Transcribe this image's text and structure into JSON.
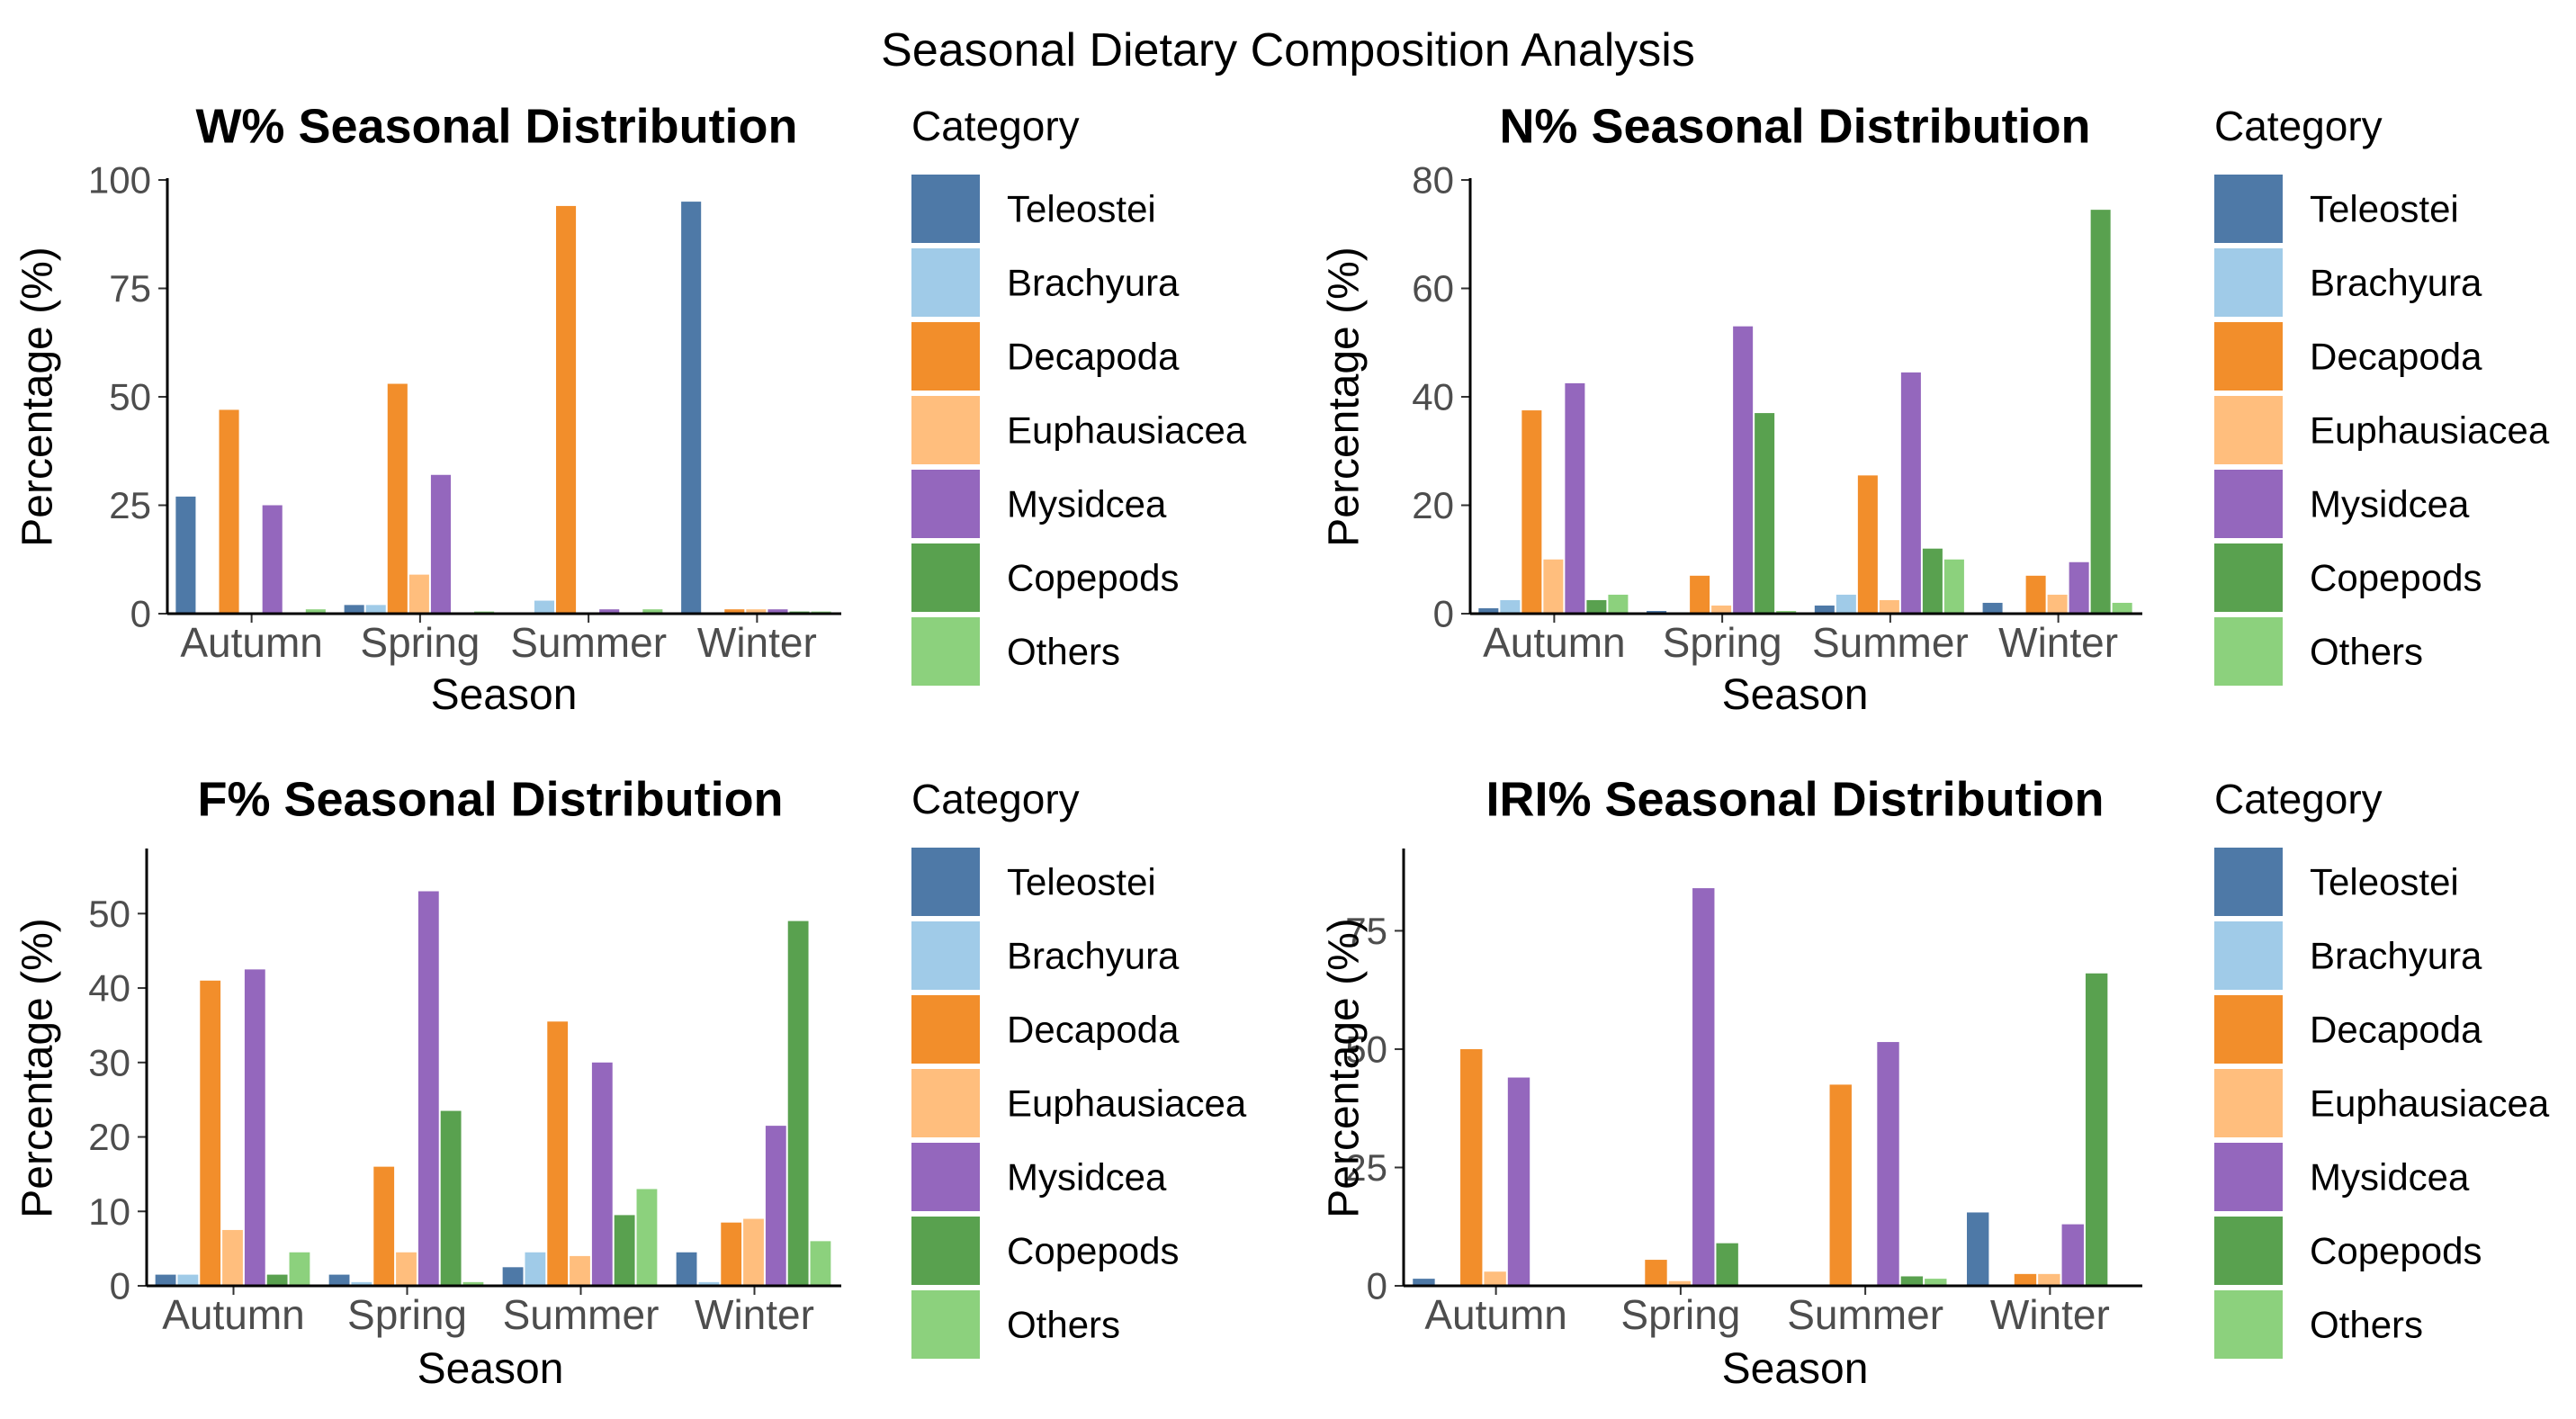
{
  "figure_title": "Seasonal Dietary Composition Analysis",
  "colors": {
    "Teleostei": "#4E79A7",
    "Brachyura": "#A0CBE8",
    "Decapoda": "#F28E2B",
    "Euphausiacea": "#FFBE7D",
    "Mysidcea": "#9467BD",
    "Copepods": "#59A14F",
    "Others": "#8CD17D"
  },
  "chart_data": [
    {
      "type": "bar",
      "title": "W% Seasonal Distribution",
      "xlabel": "Season",
      "ylabel": "Percentage (%)",
      "ylim": [
        0,
        100
      ],
      "yticks": [
        0,
        25,
        50,
        75,
        100
      ],
      "categories": [
        "Autumn",
        "Spring",
        "Summer",
        "Winter"
      ],
      "legend_title": "Category",
      "series": [
        {
          "name": "Teleostei",
          "values": [
            27,
            2,
            0,
            95
          ]
        },
        {
          "name": "Brachyura",
          "values": [
            0,
            2,
            3,
            0
          ]
        },
        {
          "name": "Decapoda",
          "values": [
            47,
            53,
            94,
            1
          ]
        },
        {
          "name": "Euphausiacea",
          "values": [
            0,
            9,
            0,
            1
          ]
        },
        {
          "name": "Mysidcea",
          "values": [
            25,
            32,
            1,
            1
          ]
        },
        {
          "name": "Copepods",
          "values": [
            0,
            0,
            0,
            0.5
          ]
        },
        {
          "name": "Others",
          "values": [
            1,
            0.5,
            1,
            0.5
          ]
        }
      ]
    },
    {
      "type": "bar",
      "title": "N% Seasonal Distribution",
      "xlabel": "Season",
      "ylabel": "Percentage (%)",
      "ylim": [
        0,
        80
      ],
      "yticks": [
        0,
        20,
        40,
        60,
        80
      ],
      "categories": [
        "Autumn",
        "Spring",
        "Summer",
        "Winter"
      ],
      "legend_title": "Category",
      "series": [
        {
          "name": "Teleostei",
          "values": [
            1,
            0.5,
            1.5,
            2
          ]
        },
        {
          "name": "Brachyura",
          "values": [
            2.5,
            0,
            3.5,
            0
          ]
        },
        {
          "name": "Decapoda",
          "values": [
            37.5,
            7,
            25.5,
            7
          ]
        },
        {
          "name": "Euphausiacea",
          "values": [
            10,
            1.5,
            2.5,
            3.5
          ]
        },
        {
          "name": "Mysidcea",
          "values": [
            42.5,
            53,
            44.5,
            9.5
          ]
        },
        {
          "name": "Copepods",
          "values": [
            2.5,
            37,
            12,
            74.5
          ]
        },
        {
          "name": "Others",
          "values": [
            3.5,
            0.5,
            10,
            2
          ]
        }
      ]
    },
    {
      "type": "bar",
      "title": "F% Seasonal Distribution",
      "xlabel": "Season",
      "ylabel": "Percentage (%)",
      "ylim": [
        0,
        58.5
      ],
      "yticks": [
        0,
        10,
        20,
        30,
        40,
        50
      ],
      "categories": [
        "Autumn",
        "Spring",
        "Summer",
        "Winter"
      ],
      "legend_title": "Category",
      "series": [
        {
          "name": "Teleostei",
          "values": [
            1.5,
            1.5,
            2.5,
            4.5
          ]
        },
        {
          "name": "Brachyura",
          "values": [
            1.5,
            0.5,
            4.5,
            0.5
          ]
        },
        {
          "name": "Decapoda",
          "values": [
            41,
            16,
            35.5,
            8.5
          ]
        },
        {
          "name": "Euphausiacea",
          "values": [
            7.5,
            4.5,
            4,
            9
          ]
        },
        {
          "name": "Mysidcea",
          "values": [
            42.5,
            53,
            30,
            21.5
          ]
        },
        {
          "name": "Copepods",
          "values": [
            1.5,
            23.5,
            9.5,
            49
          ]
        },
        {
          "name": "Others",
          "values": [
            4.5,
            0.5,
            13,
            6
          ]
        }
      ]
    },
    {
      "type": "bar",
      "title": "IRI% Seasonal Distribution",
      "xlabel": "Season",
      "ylabel": "Percentage (%)",
      "ylim": [
        0,
        92
      ],
      "yticks": [
        0,
        25,
        50,
        75
      ],
      "categories": [
        "Autumn",
        "Spring",
        "Summer",
        "Winter"
      ],
      "legend_title": "Category",
      "series": [
        {
          "name": "Teleostei",
          "values": [
            1.5,
            0,
            0,
            15.5
          ]
        },
        {
          "name": "Brachyura",
          "values": [
            0,
            0,
            0,
            0
          ]
        },
        {
          "name": "Decapoda",
          "values": [
            50,
            5.5,
            42.5,
            2.5
          ]
        },
        {
          "name": "Euphausiacea",
          "values": [
            3,
            1,
            0,
            2.5
          ]
        },
        {
          "name": "Mysidcea",
          "values": [
            44,
            84,
            51.5,
            13
          ]
        },
        {
          "name": "Copepods",
          "values": [
            0,
            9,
            2,
            66
          ]
        },
        {
          "name": "Others",
          "values": [
            0,
            0,
            1.5,
            0
          ]
        }
      ]
    }
  ]
}
